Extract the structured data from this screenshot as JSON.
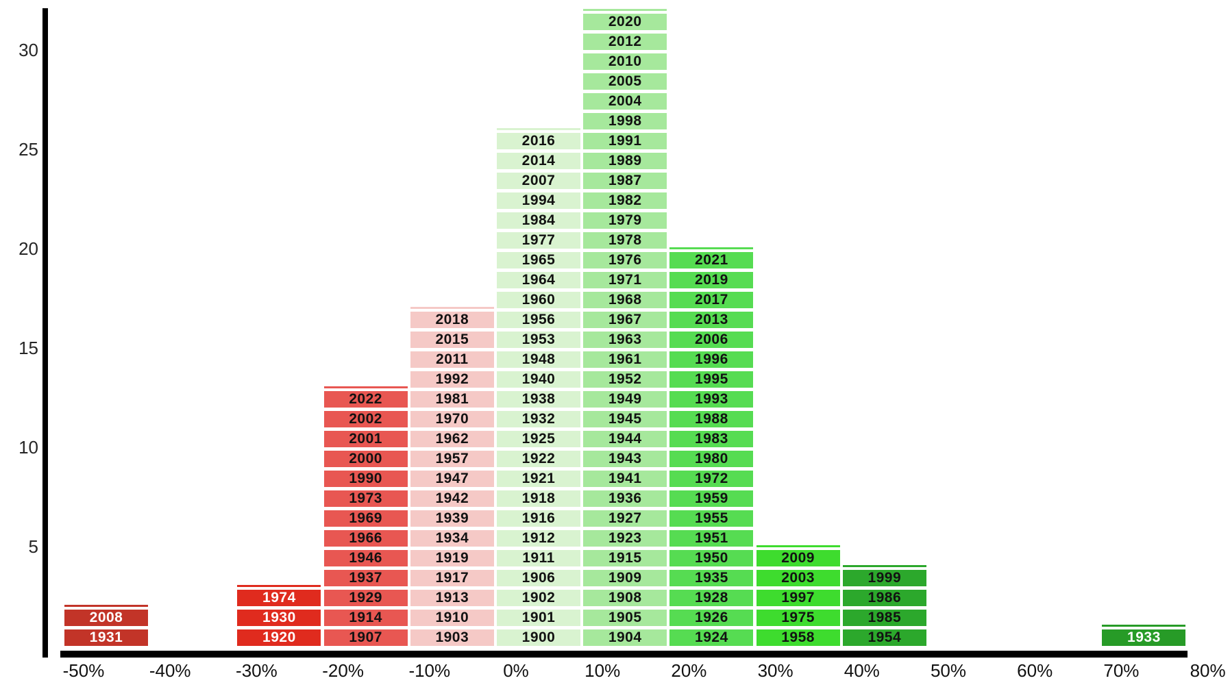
{
  "chart_data": {
    "type": "bar",
    "subtype": "stacked-year-return-histogram",
    "title": "",
    "xlabel": "",
    "ylabel": "",
    "grid": false,
    "legend": "none",
    "axis_color": "#000000",
    "x_axis": {
      "tick_labels": [
        "-50%",
        "-40%",
        "-30%",
        "-20%",
        "-10%",
        "0%",
        "10%",
        "20%",
        "30%",
        "40%",
        "50%",
        "60%",
        "70%",
        "80%"
      ]
    },
    "y_axis": {
      "tick_values": [
        5,
        10,
        15,
        20,
        25,
        30
      ],
      "range": [
        0,
        32
      ]
    },
    "bins": [
      {
        "label": "-50%",
        "tick_index": 0,
        "count": 2,
        "color": "#c23428",
        "text_color": "#ffffff",
        "years_top_to_bottom": [
          "2008",
          "1931"
        ]
      },
      {
        "label": "-30%",
        "tick_index": 2,
        "count": 3,
        "color": "#e02b1e",
        "text_color": "#ffffff",
        "years_top_to_bottom": [
          "1974",
          "1930",
          "1920"
        ]
      },
      {
        "label": "-20%",
        "tick_index": 3,
        "count": 13,
        "color": "#e85752",
        "text_color": "#121212",
        "years_top_to_bottom": [
          "2022",
          "2002",
          "2001",
          "2000",
          "1990",
          "1973",
          "1969",
          "1966",
          "1946",
          "1937",
          "1929",
          "1914",
          "1907"
        ]
      },
      {
        "label": "-10%",
        "tick_index": 4,
        "count": 17,
        "color": "#f5c9c6",
        "text_color": "#121212",
        "years_top_to_bottom": [
          "2018",
          "2015",
          "2011",
          "1992",
          "1981",
          "1970",
          "1962",
          "1957",
          "1947",
          "1942",
          "1939",
          "1934",
          "1919",
          "1917",
          "1913",
          "1910",
          "1903"
        ]
      },
      {
        "label": "0%",
        "tick_index": 5,
        "count": 26,
        "color": "#d9f3d0",
        "text_color": "#121212",
        "years_top_to_bottom": [
          "2016",
          "2014",
          "2007",
          "1994",
          "1984",
          "1977",
          "1965",
          "1964",
          "1960",
          "1956",
          "1953",
          "1948",
          "1940",
          "1938",
          "1932",
          "1925",
          "1922",
          "1921",
          "1918",
          "1916",
          "1912",
          "1911",
          "1906",
          "1902",
          "1901",
          "1900"
        ]
      },
      {
        "label": "10%",
        "tick_index": 6,
        "count": 32,
        "color": "#a6e89c",
        "text_color": "#121212",
        "years_top_to_bottom": [
          "2020",
          "2012",
          "2010",
          "2005",
          "2004",
          "1998",
          "1991",
          "1989",
          "1987",
          "1982",
          "1979",
          "1978",
          "1976",
          "1971",
          "1968",
          "1967",
          "1963",
          "1961",
          "1952",
          "1949",
          "1945",
          "1944",
          "1943",
          "1941",
          "1936",
          "1927",
          "1923",
          "1915",
          "1909",
          "1908",
          "1905",
          "1904"
        ]
      },
      {
        "label": "20%",
        "tick_index": 7,
        "count": 20,
        "color": "#56dc52",
        "text_color": "#121212",
        "years_top_to_bottom": [
          "2021",
          "2019",
          "2017",
          "2013",
          "2006",
          "1996",
          "1995",
          "1993",
          "1988",
          "1983",
          "1980",
          "1972",
          "1959",
          "1955",
          "1951",
          "1950",
          "1935",
          "1928",
          "1926",
          "1924"
        ]
      },
      {
        "label": "30%",
        "tick_index": 8,
        "count": 5,
        "color": "#3edc2e",
        "text_color": "#121212",
        "years_top_to_bottom": [
          "2009",
          "2003",
          "1997",
          "1975",
          "1958"
        ]
      },
      {
        "label": "40%",
        "tick_index": 9,
        "count": 4,
        "color": "#2ca82c",
        "text_color": "#121212",
        "years_top_to_bottom": [
          "1999",
          "1986",
          "1985",
          "1954"
        ]
      },
      {
        "label": "70%",
        "tick_index": 12,
        "count": 1,
        "color": "#279b27",
        "text_color": "#ffffff",
        "years_top_to_bottom": [
          "1933"
        ]
      }
    ]
  }
}
